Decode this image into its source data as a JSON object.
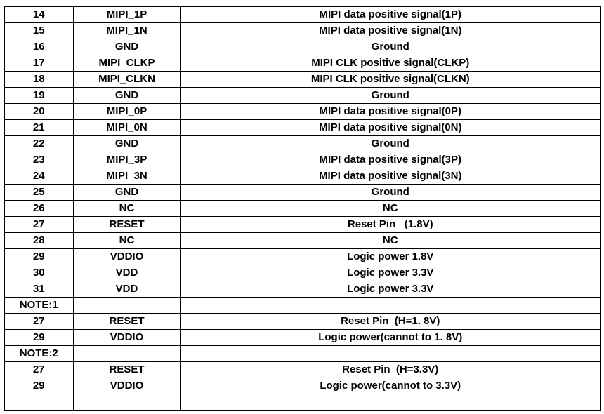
{
  "colors": {
    "background": "#ffffff",
    "border": "#000000",
    "text": "#000000"
  },
  "table": {
    "name": "pin-definition-table",
    "columns": [
      "pin_number",
      "signal_name",
      "description"
    ],
    "rows": [
      {
        "pin": "14",
        "signal": "MIPI_1P",
        "desc": "MIPI data positive signal(1P)"
      },
      {
        "pin": "15",
        "signal": "MIPI_1N",
        "desc": "MIPI data positive signal(1N)"
      },
      {
        "pin": "16",
        "signal": "GND",
        "desc": "Ground"
      },
      {
        "pin": "17",
        "signal": "MIPI_CLKP",
        "desc": "MIPI CLK positive signal(CLKP)"
      },
      {
        "pin": "18",
        "signal": "MIPI_CLKN",
        "desc": "MIPI CLK positive signal(CLKN)"
      },
      {
        "pin": "19",
        "signal": "GND",
        "desc": "Ground"
      },
      {
        "pin": "20",
        "signal": "MIPI_0P",
        "desc": "MIPI data positive signal(0P)"
      },
      {
        "pin": "21",
        "signal": "MIPI_0N",
        "desc": "MIPI data positive signal(0N)"
      },
      {
        "pin": "22",
        "signal": "GND",
        "desc": "Ground"
      },
      {
        "pin": "23",
        "signal": "MIPI_3P",
        "desc": "MIPI data positive signal(3P)"
      },
      {
        "pin": "24",
        "signal": "MIPI_3N",
        "desc": "MIPI data positive signal(3N)"
      },
      {
        "pin": "25",
        "signal": "GND",
        "desc": "Ground"
      },
      {
        "pin": "26",
        "signal": "NC",
        "desc": "NC"
      },
      {
        "pin": "27",
        "signal": "RESET",
        "desc": "Reset Pin   (1.8V)"
      },
      {
        "pin": "28",
        "signal": "NC",
        "desc": "NC"
      },
      {
        "pin": "29",
        "signal": "VDDIO",
        "desc": "Logic power 1.8V"
      },
      {
        "pin": "30",
        "signal": "VDD",
        "desc": "Logic power 3.3V"
      },
      {
        "pin": "31",
        "signal": "VDD",
        "desc": "Logic power 3.3V"
      },
      {
        "pin": "NOTE:1",
        "signal": "",
        "desc": ""
      },
      {
        "pin": "27",
        "signal": "RESET",
        "desc": "Reset Pin  (H=1. 8V)"
      },
      {
        "pin": "29",
        "signal": "VDDIO",
        "desc": "Logic power(cannot to 1. 8V)"
      },
      {
        "pin": "NOTE:2",
        "signal": "",
        "desc": ""
      },
      {
        "pin": "27",
        "signal": "RESET",
        "desc": "Reset Pin  (H=3.3V)"
      },
      {
        "pin": "29",
        "signal": "VDDIO",
        "desc": "Logic power(cannot to 3.3V)"
      },
      {
        "pin": "",
        "signal": "",
        "desc": ""
      }
    ]
  }
}
